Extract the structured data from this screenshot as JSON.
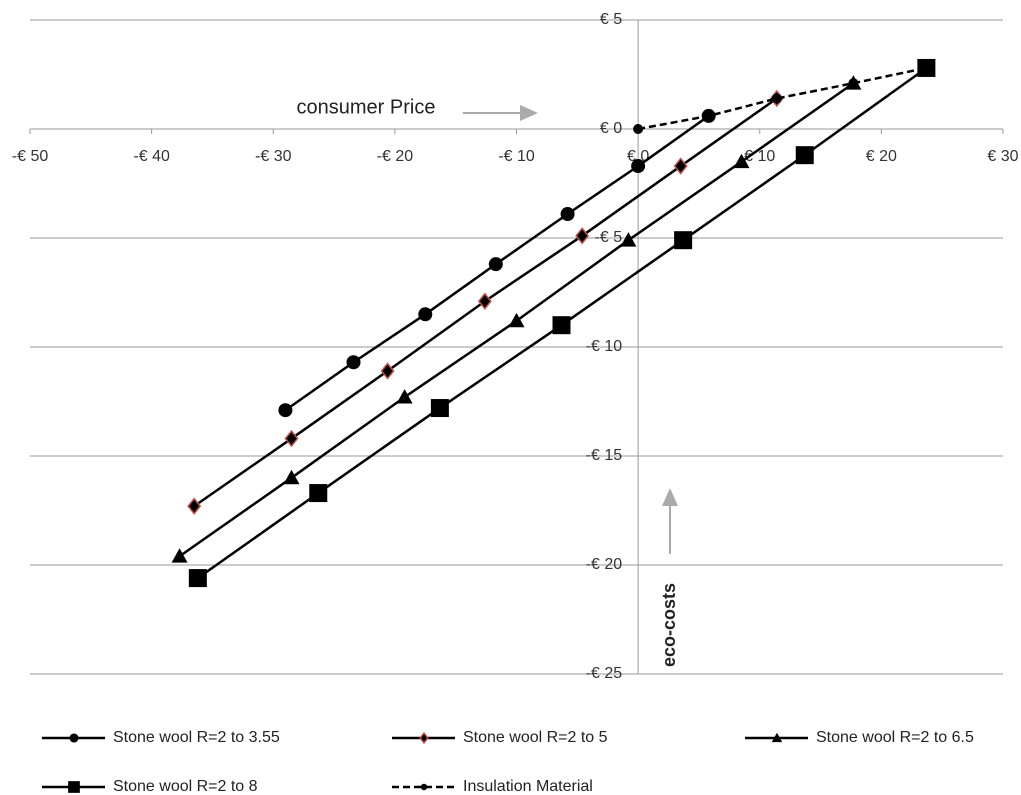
{
  "chart_data": {
    "type": "line",
    "annotations": [
      "consumer Price",
      "eco-costs"
    ],
    "xlim": [
      -50,
      30
    ],
    "xticks": [
      {
        "value": -50,
        "label": "-€ 50"
      },
      {
        "value": -40,
        "label": "-€ 40"
      },
      {
        "value": -30,
        "label": "-€ 30"
      },
      {
        "value": -20,
        "label": "-€ 20"
      },
      {
        "value": -10,
        "label": "-€ 10"
      },
      {
        "value": 0,
        "label": "€ 0"
      },
      {
        "value": 10,
        "label": "€ 10"
      },
      {
        "value": 20,
        "label": "€ 20"
      },
      {
        "value": 30,
        "label": "€ 30"
      }
    ],
    "ylim": [
      -25,
      5
    ],
    "yticks": [
      {
        "value": 5,
        "label": "€ 5"
      },
      {
        "value": 0,
        "label": "€ 0"
      },
      {
        "value": -5,
        "label": "-€ 5"
      },
      {
        "value": -10,
        "label": "-€ 10"
      },
      {
        "value": -15,
        "label": "-€ 15"
      },
      {
        "value": -20,
        "label": "-€ 20"
      },
      {
        "value": -25,
        "label": "-€ 25"
      }
    ],
    "grid": true,
    "legend": "bottom",
    "series": [
      {
        "name": "Stone wool R=2 to 3.55",
        "color": "#000000",
        "marker": "circle",
        "dash": false,
        "x": [
          -29.0,
          -23.4,
          -17.5,
          -11.7,
          -5.8,
          0,
          5.8
        ],
        "values": [
          -12.9,
          -10.7,
          -8.5,
          -6.2,
          -3.9,
          -1.7,
          0.6
        ]
      },
      {
        "name": "Stone wool R=2 to 5",
        "color": "#000000",
        "marker": "diamond",
        "edge": "#c0504d",
        "dash": false,
        "x": [
          -36.5,
          -28.5,
          -20.6,
          -12.6,
          -4.6,
          3.5,
          11.4
        ],
        "values": [
          -17.3,
          -14.2,
          -11.1,
          -7.9,
          -4.9,
          -1.7,
          1.4
        ]
      },
      {
        "name": "Stone wool R=2 to 6.5",
        "color": "#000000",
        "marker": "triangle",
        "dash": false,
        "x": [
          -37.7,
          -28.5,
          -19.2,
          -10.0,
          -0.8,
          8.5,
          17.7
        ],
        "values": [
          -19.6,
          -16.0,
          -12.3,
          -8.8,
          -5.1,
          -1.5,
          2.1
        ]
      },
      {
        "name": "Stone wool R=2 to 8",
        "color": "#000000",
        "marker": "square",
        "dash": false,
        "x": [
          -36.2,
          -26.3,
          -16.3,
          -6.3,
          3.7,
          13.7,
          23.7
        ],
        "values": [
          -20.6,
          -16.7,
          -12.8,
          -9.0,
          -5.1,
          -1.2,
          2.8
        ]
      },
      {
        "name": "Insulation Material",
        "color": "#000000",
        "marker": "dot",
        "dash": true,
        "x": [
          0,
          5.8,
          11.4,
          17.7,
          23.7
        ],
        "values": [
          0,
          0.6,
          1.4,
          2.1,
          2.8
        ]
      }
    ]
  }
}
